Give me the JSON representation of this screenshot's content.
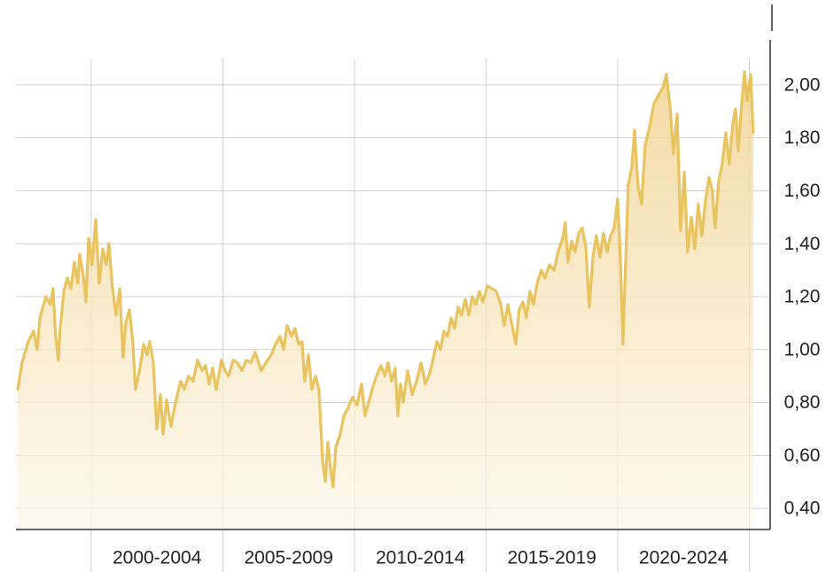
{
  "chart_data": {
    "type": "area",
    "color": "#e9c35e",
    "grid": true,
    "xlim": [
      1997.14,
      2025.76
    ],
    "x_grid": [
      2000,
      2005,
      2010,
      2015,
      2020,
      2025
    ],
    "xticks": [
      {
        "value": 2002.5,
        "label": "2000-2004"
      },
      {
        "value": 2007.5,
        "label": "2005-2009"
      },
      {
        "value": 2012.5,
        "label": "2010-2014"
      },
      {
        "value": 2017.5,
        "label": "2015-2019"
      },
      {
        "value": 2022.5,
        "label": "2020-2024"
      }
    ],
    "ylim": [
      0.32,
      2.1
    ],
    "yticks": [
      {
        "value": 0.4,
        "label": "0,40"
      },
      {
        "value": 0.6,
        "label": "0,60"
      },
      {
        "value": 0.8,
        "label": "0,80"
      },
      {
        "value": 1.0,
        "label": "1,00"
      },
      {
        "value": 1.2,
        "label": "1,20"
      },
      {
        "value": 1.4,
        "label": "1,40"
      },
      {
        "value": 1.6,
        "label": "1,60"
      },
      {
        "value": 1.8,
        "label": "1,80"
      },
      {
        "value": 2.0,
        "label": "2,00"
      }
    ],
    "x": [
      1997.21,
      1997.37,
      1997.61,
      1997.81,
      1997.95,
      1998.05,
      1998.28,
      1998.45,
      1998.55,
      1998.65,
      1998.75,
      1998.82,
      1998.96,
      1999.09,
      1999.23,
      1999.36,
      1999.49,
      1999.56,
      1999.7,
      1999.8,
      1999.9,
      2000.03,
      2000.17,
      2000.3,
      2000.44,
      2000.57,
      2000.67,
      2000.81,
      2000.94,
      2001.08,
      2001.21,
      2001.31,
      2001.45,
      2001.58,
      2001.68,
      2001.85,
      2001.99,
      2002.12,
      2002.22,
      2002.36,
      2002.49,
      2002.63,
      2002.73,
      2002.86,
      2003.03,
      2003.2,
      2003.4,
      2003.54,
      2003.7,
      2003.87,
      2004.04,
      2004.21,
      2004.34,
      2004.48,
      2004.61,
      2004.75,
      2004.95,
      2005.08,
      2005.22,
      2005.39,
      2005.56,
      2005.72,
      2005.89,
      2006.06,
      2006.23,
      2006.46,
      2006.63,
      2006.84,
      2007.0,
      2007.17,
      2007.31,
      2007.44,
      2007.61,
      2007.74,
      2007.88,
      2008.01,
      2008.11,
      2008.25,
      2008.38,
      2008.52,
      2008.65,
      2008.79,
      2008.89,
      2008.99,
      2009.09,
      2009.19,
      2009.29,
      2009.46,
      2009.6,
      2009.76,
      2009.93,
      2010.1,
      2010.27,
      2010.4,
      2010.54,
      2010.67,
      2010.84,
      2011.01,
      2011.15,
      2011.28,
      2011.41,
      2011.55,
      2011.65,
      2011.75,
      2011.85,
      2012.02,
      2012.19,
      2012.36,
      2012.53,
      2012.69,
      2012.86,
      2013.0,
      2013.13,
      2013.27,
      2013.4,
      2013.54,
      2013.67,
      2013.8,
      2013.94,
      2014.07,
      2014.21,
      2014.34,
      2014.48,
      2014.61,
      2014.75,
      2014.88,
      2015.05,
      2015.22,
      2015.39,
      2015.56,
      2015.69,
      2015.83,
      2015.99,
      2016.13,
      2016.26,
      2016.4,
      2016.53,
      2016.67,
      2016.8,
      2016.94,
      2017.1,
      2017.24,
      2017.41,
      2017.58,
      2017.74,
      2017.91,
      2018.01,
      2018.11,
      2018.25,
      2018.38,
      2018.52,
      2018.65,
      2018.79,
      2018.92,
      2019.06,
      2019.19,
      2019.33,
      2019.46,
      2019.6,
      2019.73,
      2019.87,
      2020.0,
      2020.1,
      2020.2,
      2020.3,
      2020.4,
      2020.54,
      2020.64,
      2020.77,
      2020.91,
      2021.04,
      2021.21,
      2021.38,
      2021.55,
      2021.72,
      2021.85,
      2021.99,
      2022.12,
      2022.26,
      2022.39,
      2022.53,
      2022.66,
      2022.8,
      2022.93,
      2023.06,
      2023.2,
      2023.33,
      2023.47,
      2023.6,
      2023.7,
      2023.84,
      2023.97,
      2024.11,
      2024.24,
      2024.38,
      2024.48,
      2024.58,
      2024.68,
      2024.82,
      2024.92,
      2025.05,
      2025.15
    ],
    "values": [
      0.85,
      0.95,
      1.03,
      1.07,
      1.0,
      1.12,
      1.2,
      1.17,
      1.23,
      1.05,
      0.96,
      1.08,
      1.22,
      1.27,
      1.23,
      1.33,
      1.25,
      1.36,
      1.28,
      1.18,
      1.42,
      1.32,
      1.49,
      1.25,
      1.38,
      1.32,
      1.4,
      1.23,
      1.13,
      1.23,
      0.97,
      1.1,
      1.15,
      1.03,
      0.85,
      0.93,
      1.02,
      0.98,
      1.03,
      0.95,
      0.7,
      0.83,
      0.68,
      0.81,
      0.71,
      0.8,
      0.88,
      0.85,
      0.9,
      0.88,
      0.96,
      0.92,
      0.94,
      0.87,
      0.93,
      0.85,
      0.96,
      0.92,
      0.9,
      0.96,
      0.95,
      0.92,
      0.96,
      0.95,
      0.99,
      0.92,
      0.95,
      0.98,
      1.02,
      1.05,
      1.0,
      1.09,
      1.05,
      1.08,
      1.02,
      1.03,
      0.88,
      0.98,
      0.85,
      0.9,
      0.85,
      0.58,
      0.5,
      0.65,
      0.55,
      0.48,
      0.63,
      0.68,
      0.75,
      0.78,
      0.82,
      0.79,
      0.87,
      0.75,
      0.8,
      0.85,
      0.9,
      0.94,
      0.9,
      0.95,
      0.88,
      0.93,
      0.75,
      0.87,
      0.8,
      0.92,
      0.83,
      0.88,
      0.95,
      0.87,
      0.91,
      0.97,
      1.03,
      1.0,
      1.07,
      1.05,
      1.12,
      1.08,
      1.16,
      1.13,
      1.19,
      1.13,
      1.2,
      1.17,
      1.22,
      1.18,
      1.24,
      1.23,
      1.22,
      1.17,
      1.09,
      1.17,
      1.09,
      1.02,
      1.15,
      1.18,
      1.12,
      1.22,
      1.17,
      1.25,
      1.3,
      1.27,
      1.32,
      1.3,
      1.37,
      1.42,
      1.48,
      1.33,
      1.41,
      1.37,
      1.44,
      1.46,
      1.39,
      1.16,
      1.35,
      1.43,
      1.35,
      1.44,
      1.37,
      1.43,
      1.46,
      1.57,
      1.35,
      1.02,
      1.32,
      1.62,
      1.69,
      1.83,
      1.62,
      1.55,
      1.77,
      1.84,
      1.93,
      1.96,
      1.99,
      2.04,
      1.92,
      1.74,
      1.89,
      1.45,
      1.67,
      1.37,
      1.5,
      1.38,
      1.55,
      1.43,
      1.56,
      1.65,
      1.6,
      1.46,
      1.64,
      1.7,
      1.82,
      1.7,
      1.86,
      1.91,
      1.75,
      1.89,
      2.05,
      1.94,
      2.04,
      1.82
    ]
  }
}
